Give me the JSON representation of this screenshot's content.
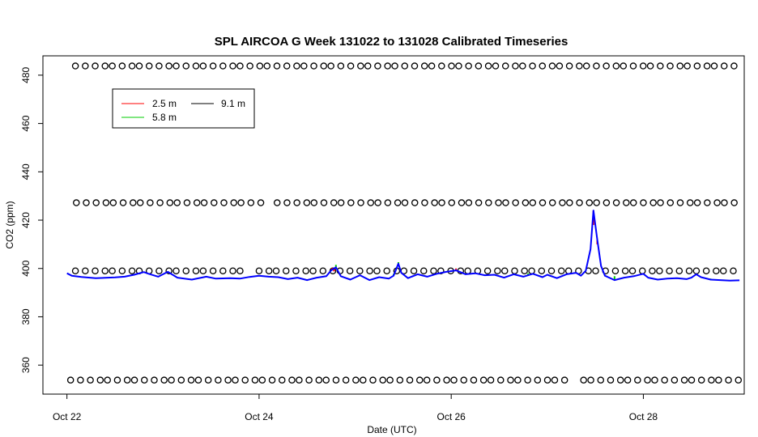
{
  "chart_data": {
    "type": "line",
    "title": "SPL AIRCOA G  Week 131022 to 131028  Calibrated Timeseries",
    "xlabel": "Date (UTC)",
    "ylabel": "CO2 (ppm)",
    "x_ticks": [
      {
        "day": 0,
        "label": "Oct 22"
      },
      {
        "day": 2,
        "label": "Oct 24"
      },
      {
        "day": 4,
        "label": "Oct 26"
      },
      {
        "day": 6,
        "label": "Oct 28"
      }
    ],
    "y_ticks": [
      360,
      380,
      400,
      420,
      440,
      460,
      480
    ],
    "xlim": [
      -0.25,
      7.05
    ],
    "ylim": [
      348,
      488
    ],
    "grid": false,
    "legend_position": "top-left",
    "series": [
      {
        "name": "2.5 m",
        "color": "#ff0000"
      },
      {
        "name": "5.8 m",
        "color": "#00cd00"
      },
      {
        "name": "9.1 m",
        "color": "#0000ff"
      }
    ],
    "legend_swatch_color_9_1": "#000000",
    "co2_9_1m": [
      [
        0.0,
        398.0
      ],
      [
        0.05,
        397.0
      ],
      [
        0.15,
        396.5
      ],
      [
        0.3,
        396.0
      ],
      [
        0.5,
        396.3
      ],
      [
        0.6,
        396.6
      ],
      [
        0.7,
        397.4
      ],
      [
        0.8,
        398.5
      ],
      [
        0.85,
        397.8
      ],
      [
        0.95,
        396.6
      ],
      [
        1.05,
        398.6
      ],
      [
        1.15,
        396.2
      ],
      [
        1.3,
        395.4
      ],
      [
        1.45,
        396.6
      ],
      [
        1.55,
        395.8
      ],
      [
        1.7,
        396.0
      ],
      [
        1.8,
        395.8
      ],
      [
        1.9,
        396.5
      ],
      [
        2.0,
        397.0
      ],
      [
        2.1,
        396.6
      ],
      [
        2.2,
        396.4
      ],
      [
        2.3,
        395.6
      ],
      [
        2.4,
        396.2
      ],
      [
        2.5,
        395.2
      ],
      [
        2.6,
        396.2
      ],
      [
        2.7,
        396.8
      ],
      [
        2.75,
        399.2
      ],
      [
        2.8,
        400.5
      ],
      [
        2.85,
        396.8
      ],
      [
        2.95,
        395.4
      ],
      [
        3.05,
        397.2
      ],
      [
        3.15,
        395.2
      ],
      [
        3.25,
        396.4
      ],
      [
        3.35,
        395.8
      ],
      [
        3.4,
        397.0
      ],
      [
        3.45,
        402.0
      ],
      [
        3.48,
        398.2
      ],
      [
        3.55,
        396.0
      ],
      [
        3.65,
        397.6
      ],
      [
        3.75,
        396.6
      ],
      [
        3.85,
        397.8
      ],
      [
        3.95,
        398.6
      ],
      [
        4.05,
        399.2
      ],
      [
        4.15,
        397.6
      ],
      [
        4.25,
        398.0
      ],
      [
        4.35,
        397.2
      ],
      [
        4.45,
        397.4
      ],
      [
        4.55,
        396.2
      ],
      [
        4.65,
        397.6
      ],
      [
        4.75,
        396.6
      ],
      [
        4.85,
        397.8
      ],
      [
        4.95,
        396.4
      ],
      [
        5.0,
        397.4
      ],
      [
        5.1,
        396.0
      ],
      [
        5.2,
        397.6
      ],
      [
        5.3,
        398.2
      ],
      [
        5.35,
        397.0
      ],
      [
        5.4,
        399.0
      ],
      [
        5.45,
        408.0
      ],
      [
        5.48,
        424.0
      ],
      [
        5.52,
        412.0
      ],
      [
        5.56,
        401.0
      ],
      [
        5.6,
        397.0
      ],
      [
        5.7,
        395.2
      ],
      [
        5.8,
        396.2
      ],
      [
        5.9,
        396.8
      ],
      [
        6.0,
        397.8
      ],
      [
        6.05,
        396.2
      ],
      [
        6.15,
        395.4
      ],
      [
        6.25,
        395.8
      ],
      [
        6.35,
        396.0
      ],
      [
        6.45,
        395.6
      ],
      [
        6.5,
        396.2
      ],
      [
        6.55,
        397.6
      ],
      [
        6.6,
        396.4
      ],
      [
        6.7,
        395.4
      ],
      [
        6.8,
        395.2
      ],
      [
        6.9,
        395.0
      ],
      [
        7.0,
        395.1
      ]
    ],
    "co2_2_5m": [
      [
        2.76,
        400.2
      ],
      [
        2.78,
        398.8
      ],
      [
        3.45,
        401.2
      ],
      [
        4.05,
        400.0
      ],
      [
        5.48,
        418.0
      ],
      [
        5.52,
        410.0
      ]
    ],
    "co2_5_8m": [
      [
        2.8,
        401.5
      ],
      [
        2.82,
        399.0
      ],
      [
        3.4,
        397.8
      ],
      [
        3.45,
        402.6
      ],
      [
        4.8,
        398.0
      ],
      [
        5.7,
        396.8
      ],
      [
        6.7,
        395.8
      ]
    ],
    "ref_points": [
      {
        "level": 483.8,
        "x_start": 0.1,
        "x_end": 7.0,
        "step": 0.095,
        "phase": 0
      },
      {
        "level": 427.2,
        "x_start": 0.08,
        "x_end": 7.0,
        "step": 0.095,
        "phase": 0.03
      },
      {
        "level": 399.0,
        "x_start": 0.05,
        "x_end": 7.0,
        "step": 0.095,
        "phase": 0.05
      },
      {
        "level": 353.8,
        "x_start": 0.03,
        "x_end": 7.0,
        "step": 0.095,
        "phase": 0.02
      }
    ],
    "ref_point_gaps": [
      {
        "level": 427.2,
        "from": 2.05,
        "to": 2.15
      },
      {
        "level": 399.0,
        "from": 1.83,
        "to": 1.92
      },
      {
        "level": 353.8,
        "from": 5.25,
        "to": 5.35
      }
    ]
  }
}
